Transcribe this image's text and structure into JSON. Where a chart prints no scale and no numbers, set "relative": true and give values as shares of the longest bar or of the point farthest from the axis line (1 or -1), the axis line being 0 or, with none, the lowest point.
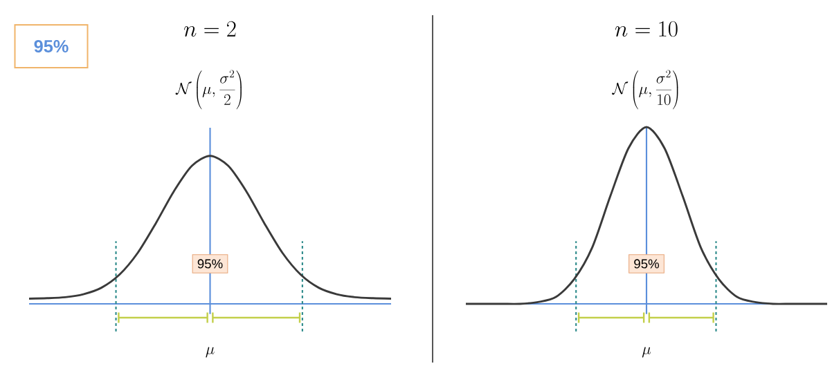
{
  "chart_data": [
    {
      "type": "line",
      "relative": true,
      "title": "n = 2",
      "subtitle": "\\mathcal{N}\\left(\\mu, \\frac{\\sigma^2}{2}\\right)",
      "xlabel": "\\mu",
      "categories": [
        null,
        null,
        null,
        null,
        null,
        null,
        null,
        null,
        null,
        null,
        null,
        null,
        null,
        null,
        null,
        null,
        null,
        null,
        null,
        null,
        null
      ],
      "values": [
        0.035,
        0.038,
        0.045,
        0.065,
        0.109,
        0.198,
        0.344,
        0.544,
        0.761,
        0.933,
        1,
        0.933,
        0.761,
        0.544,
        0.344,
        0.198,
        0.109,
        0.065,
        0.045,
        0.038,
        0.035
      ],
      "color": "#3a3a3a",
      "annotations": [
        "95%",
        "95%"
      ]
    },
    {
      "type": "line",
      "relative": true,
      "title": "n = 10",
      "subtitle": "\\mathcal{N}\\left(\\mu, \\frac{\\sigma^2}{10}\\right)",
      "xlabel": "\\mu",
      "categories": [
        null,
        null,
        null,
        null,
        null,
        null,
        null,
        null,
        null,
        null,
        null,
        null,
        null,
        null,
        null,
        null,
        null,
        null,
        null,
        null,
        null
      ],
      "values": [
        0,
        0,
        0,
        0,
        0.01,
        0.04,
        0.14,
        0.32,
        0.61,
        0.88,
        1,
        0.88,
        0.61,
        0.32,
        0.14,
        0.04,
        0.01,
        0,
        0,
        0,
        0
      ],
      "color": "#3a3a3a",
      "annotations": [
        "95%"
      ]
    }
  ]
}
